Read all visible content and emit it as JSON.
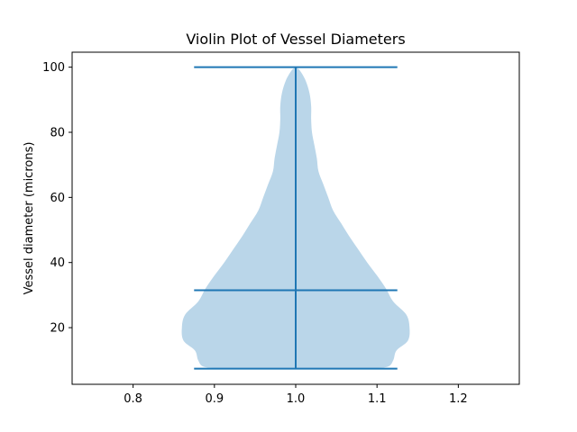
{
  "chart_data": {
    "type": "violin",
    "title": "Violin Plot of Vessel Diameters",
    "xlabel": "",
    "ylabel": "Vessel diameter (microns)",
    "xlim": [
      0.725,
      1.275
    ],
    "ylim": [
      2.6,
      104.6
    ],
    "x_ticks": [
      0.8,
      0.9,
      1.0,
      1.1,
      1.2
    ],
    "x_tick_labels": [
      "0.8",
      "0.9",
      "1.0",
      "1.1",
      "1.2"
    ],
    "y_ticks": [
      20,
      40,
      60,
      80,
      100
    ],
    "y_tick_labels": [
      "20",
      "40",
      "60",
      "80",
      "100"
    ],
    "grid": false,
    "colors": {
      "body": "#bad6e9",
      "lines": "#1f77b4"
    },
    "violins": [
      {
        "position": 1.0,
        "min": 7.4,
        "max": 100,
        "median": 31.5,
        "cap_half_width": 0.125,
        "density_profile": [
          {
            "y": 7.4,
            "half_width": 0.09
          },
          {
            "y": 8,
            "half_width": 0.113
          },
          {
            "y": 10,
            "half_width": 0.12
          },
          {
            "y": 13,
            "half_width": 0.124
          },
          {
            "y": 16,
            "half_width": 0.138
          },
          {
            "y": 20,
            "half_width": 0.14
          },
          {
            "y": 24,
            "half_width": 0.136
          },
          {
            "y": 28,
            "half_width": 0.12
          },
          {
            "y": 32,
            "half_width": 0.111
          },
          {
            "y": 36,
            "half_width": 0.1
          },
          {
            "y": 40,
            "half_width": 0.088
          },
          {
            "y": 44,
            "half_width": 0.077
          },
          {
            "y": 48,
            "half_width": 0.066
          },
          {
            "y": 52,
            "half_width": 0.056
          },
          {
            "y": 56,
            "half_width": 0.046
          },
          {
            "y": 60,
            "half_width": 0.04
          },
          {
            "y": 64,
            "half_width": 0.034
          },
          {
            "y": 68,
            "half_width": 0.028
          },
          {
            "y": 72,
            "half_width": 0.026
          },
          {
            "y": 76,
            "half_width": 0.023
          },
          {
            "y": 80,
            "half_width": 0.02
          },
          {
            "y": 84,
            "half_width": 0.019
          },
          {
            "y": 88,
            "half_width": 0.019
          },
          {
            "y": 92,
            "half_width": 0.017
          },
          {
            "y": 96,
            "half_width": 0.012
          },
          {
            "y": 99,
            "half_width": 0.005
          },
          {
            "y": 100,
            "half_width": 0.0
          }
        ]
      }
    ]
  }
}
